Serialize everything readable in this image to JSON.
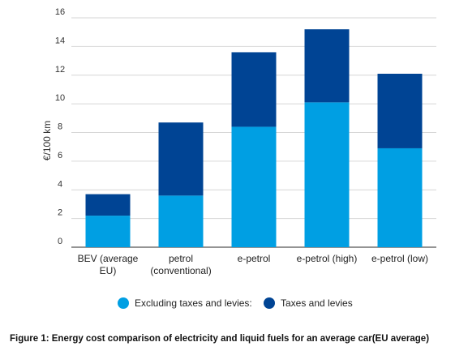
{
  "chart_data": {
    "type": "bar",
    "stacked": true,
    "categories": [
      [
        "BEV (average",
        "EU)"
      ],
      [
        "petrol",
        "(conventional)"
      ],
      [
        "e-petrol"
      ],
      [
        "e-petrol (high)"
      ],
      [
        "e-petrol (low)"
      ]
    ],
    "series": [
      {
        "name": "Excluding taxes and levies:",
        "color": "#009fe3",
        "values": [
          2.2,
          3.6,
          8.4,
          10.1,
          6.9
        ]
      },
      {
        "name": "Taxes and levies",
        "color": "#004494",
        "values": [
          1.5,
          5.1,
          5.2,
          5.1,
          5.2
        ]
      }
    ],
    "ylabel": "€/100 km",
    "xlabel": "",
    "ylim": [
      0,
      16
    ],
    "yticks": [
      0,
      2,
      4,
      6,
      8,
      10,
      12,
      14,
      16
    ],
    "grid": true,
    "legend": "bottom"
  },
  "caption": "Figure 1: Energy cost comparison of electricity and  liquid fuels for an average car(EU average)"
}
